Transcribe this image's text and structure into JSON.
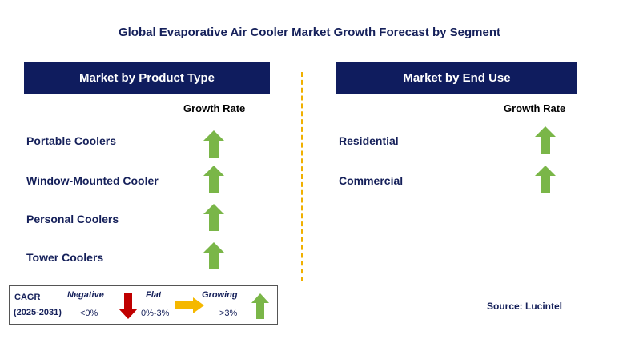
{
  "title": "Global Evaporative Air Cooler Market Growth Forecast by Segment",
  "left_panel": {
    "header": "Market by Product Type",
    "growth_label": "Growth Rate",
    "rows": [
      {
        "label": "Portable Coolers",
        "trend": "growing"
      },
      {
        "label": "Window-Mounted Cooler",
        "trend": "growing"
      },
      {
        "label": "Personal Coolers",
        "trend": "growing"
      },
      {
        "label": "Tower Coolers",
        "trend": "growing"
      }
    ]
  },
  "right_panel": {
    "header": "Market by End Use",
    "growth_label": "Growth Rate",
    "rows": [
      {
        "label": "Residential",
        "trend": "growing"
      },
      {
        "label": "Commercial",
        "trend": "growing"
      }
    ]
  },
  "legend": {
    "cagr_label": "CAGR",
    "period": "(2025-2031)",
    "negative_label": "Negative",
    "negative_value": "<0%",
    "flat_label": "Flat",
    "flat_value": "0%-3%",
    "growing_label": "Growing",
    "growing_value": ">3%"
  },
  "source": "Source: Lucintel",
  "colors": {
    "header_bg": "#0f1c5e",
    "growing": "#7ab648",
    "negative": "#c00000",
    "flat": "#f5b800",
    "divider": "#f0b000"
  }
}
